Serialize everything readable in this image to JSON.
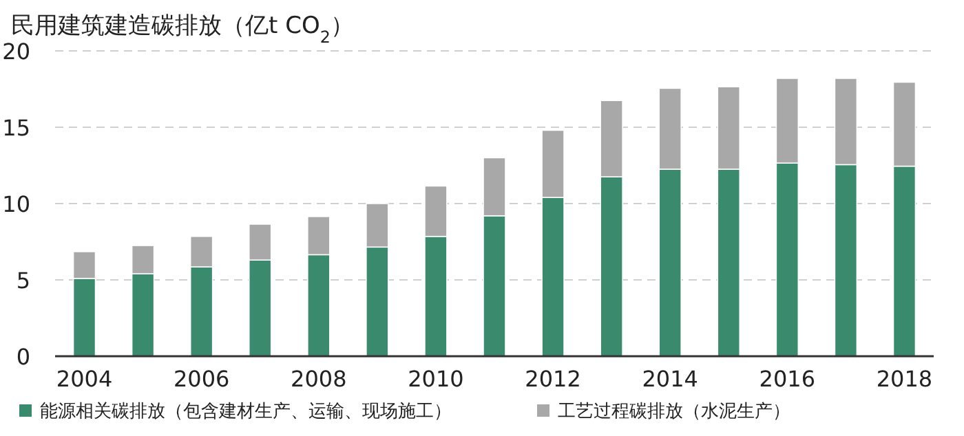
{
  "chart_data": {
    "type": "bar",
    "title": "民用建筑建造碳排放（亿t CO$_{2}$）",
    "stacked": true,
    "categories": [
      "2004",
      null,
      "2006",
      null,
      "2008",
      null,
      "2010",
      null,
      "2012",
      null,
      "2014",
      null,
      "2016",
      null,
      "2018"
    ],
    "series": [
      {
        "name": "能源相关碳排放（包含建材生产、运输、现场施工）",
        "color": "#3a8a6e",
        "values": [
          5.1,
          5.4,
          5.85,
          6.3,
          6.65,
          7.15,
          7.85,
          9.2,
          10.4,
          11.75,
          12.25,
          12.25,
          12.65,
          12.55,
          12.45
        ]
      },
      {
        "name": "工艺过程碳排放（水泥生产）",
        "color": "#a8a8a8",
        "values": [
          1.75,
          1.85,
          2.0,
          2.35,
          2.5,
          2.85,
          3.3,
          3.8,
          4.4,
          5.0,
          5.3,
          5.4,
          5.55,
          5.65,
          5.5
        ]
      }
    ],
    "ylim": [
      0,
      20
    ],
    "yticks": [
      0,
      5,
      10,
      15,
      20
    ],
    "grid": "y",
    "legend": "bottom"
  }
}
